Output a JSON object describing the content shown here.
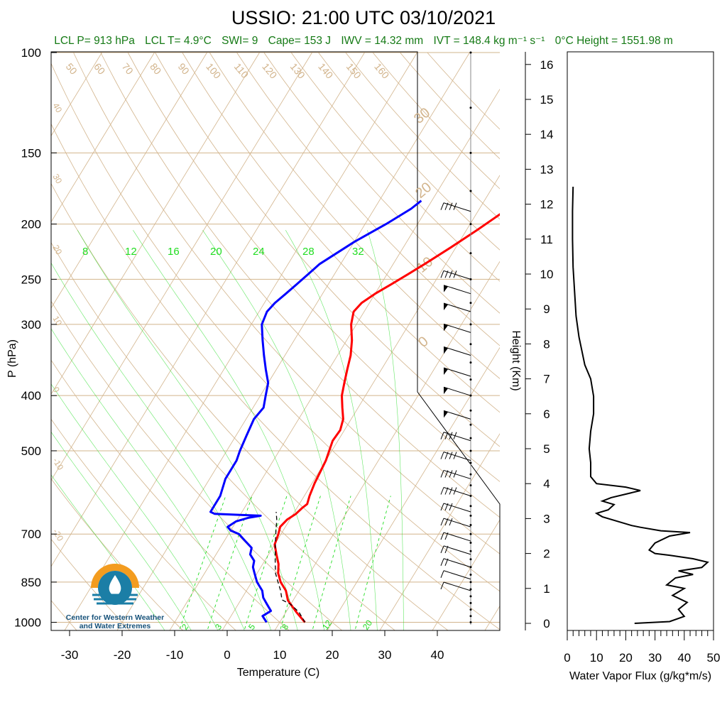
{
  "title": "USSIO: 21:00 UTC 03/10/2021",
  "subtitle": {
    "lcl_p": "LCL P= 913 hPa",
    "lcl_t": "LCL T= 4.9°C",
    "swi": "SWI= 9",
    "cape": "Cape= 153 J",
    "iwv": "IWV = 14.32 mm",
    "ivt": "IVT = 148.4 kg m⁻¹ s⁻¹",
    "zero_height": "0°C Height = 1551.98 m"
  },
  "logo": {
    "name_line1": "Center for Western Weather",
    "name_line2": "and Water Extremes",
    "icon": "water-drop-sun-icon"
  },
  "colors": {
    "temperature": "#ff0000",
    "dewpoint": "#0000ff",
    "parcel": "#000000",
    "isotherm": "#d2b48c",
    "mixing_ratio": "#22dd22",
    "subtitle": "#157a15"
  },
  "chart_data": [
    {
      "type": "line",
      "title": "",
      "xlabel": "Temperature (C)",
      "ylabel": "P (hPa)",
      "x_ticks": [
        -30,
        -20,
        -10,
        0,
        10,
        20,
        30,
        40
      ],
      "y_ticks": [
        100,
        150,
        200,
        250,
        300,
        400,
        500,
        700,
        850,
        1000
      ],
      "y_scale": "log",
      "xlim": [
        -34,
        50
      ],
      "ylim": [
        1050,
        100
      ],
      "isotherm_labels": [
        50,
        60,
        70,
        80,
        90,
        100,
        110,
        120,
        130,
        140,
        150,
        160
      ],
      "dry_adiabat_labels": [
        40,
        30,
        20,
        10,
        0,
        -10,
        -20
      ],
      "moist_adiabat_labels": [
        30,
        20,
        10,
        0
      ],
      "mixing_ratio_top_labels": [
        8,
        12,
        16,
        20,
        24,
        28,
        32
      ],
      "mixing_ratio_bottom_labels": [
        2,
        3,
        5,
        8,
        12,
        20
      ],
      "series": [
        {
          "kind": "temperature",
          "points": [
            [
              14.8,
              1000
            ],
            [
              12,
              960
            ],
            [
              9,
              915
            ],
            [
              7.5,
              880
            ],
            [
              5.5,
              850
            ],
            [
              4,
              820
            ],
            [
              3,
              790
            ],
            [
              1.5,
              760
            ],
            [
              0,
              730
            ],
            [
              -0.5,
              700
            ],
            [
              -1,
              680
            ],
            [
              -0.5,
              660
            ],
            [
              0.5,
              645
            ],
            [
              1,
              630
            ],
            [
              1.5,
              620
            ],
            [
              1,
              600
            ],
            [
              0.5,
              570
            ],
            [
              0.2,
              540
            ],
            [
              0,
              520
            ],
            [
              -0.5,
              500
            ],
            [
              -1,
              480
            ],
            [
              -0.8,
              460
            ],
            [
              -1.5,
              440
            ],
            [
              -3,
              420
            ],
            [
              -4.5,
              400
            ],
            [
              -5.5,
              380
            ],
            [
              -6.5,
              360
            ],
            [
              -7.5,
              340
            ],
            [
              -9,
              320
            ],
            [
              -11,
              300
            ],
            [
              -12,
              285
            ],
            [
              -11.5,
              275
            ],
            [
              -10,
              265
            ],
            [
              -8,
              255
            ],
            [
              -6,
              245
            ],
            [
              -4,
              235
            ],
            [
              -1,
              220
            ],
            [
              2,
              205
            ],
            [
              5,
              190
            ],
            [
              6,
              182
            ],
            [
              7,
              178
            ]
          ]
        },
        {
          "kind": "dewpoint",
          "points": [
            [
              7.5,
              1000
            ],
            [
              6,
              975
            ],
            [
              7,
              955
            ],
            [
              5.5,
              930
            ],
            [
              4,
              905
            ],
            [
              3,
              880
            ],
            [
              1,
              850
            ],
            [
              -0.5,
              820
            ],
            [
              -1.5,
              800
            ],
            [
              -2,
              780
            ],
            [
              -3.5,
              760
            ],
            [
              -4,
              740
            ],
            [
              -6,
              720
            ],
            [
              -8,
              700
            ],
            [
              -10,
              690
            ],
            [
              -11,
              680
            ],
            [
              -10,
              665
            ],
            [
              -8,
              655
            ],
            [
              -6,
              650
            ],
            [
              -10,
              648
            ],
            [
              -15,
              645
            ],
            [
              -16,
              640
            ],
            [
              -16,
              600
            ],
            [
              -17,
              560
            ],
            [
              -17,
              520
            ],
            [
              -17.5,
              500
            ],
            [
              -18,
              470
            ],
            [
              -18.5,
              440
            ],
            [
              -18,
              420
            ],
            [
              -19,
              400
            ],
            [
              -20,
              380
            ],
            [
              -22,
              360
            ],
            [
              -24,
              340
            ],
            [
              -26,
              320
            ],
            [
              -28,
              300
            ],
            [
              -28.5,
              285
            ],
            [
              -28,
              275
            ],
            [
              -27,
              265
            ],
            [
              -26,
              255
            ],
            [
              -25,
              245
            ],
            [
              -24,
              235
            ],
            [
              -20,
              215
            ],
            [
              -16,
              200
            ],
            [
              -13,
              188
            ],
            [
              -12,
              182
            ]
          ]
        },
        {
          "kind": "parcel",
          "points": [
            [
              14.8,
              1000
            ],
            [
              12.5,
              960
            ],
            [
              10,
              930
            ],
            [
              7.8,
              913
            ],
            [
              6.5,
              880
            ],
            [
              5,
              850
            ],
            [
              3.5,
              820
            ],
            [
              2,
              780
            ],
            [
              0.5,
              740
            ],
            [
              -1,
              700
            ],
            [
              -2.5,
              660
            ],
            [
              -3.5,
              640
            ]
          ]
        },
        {
          "kind": "wind_barbs",
          "points": [
            [
              15,
              880
            ],
            [
              15,
              840
            ],
            [
              20,
              800
            ],
            [
              20,
              760
            ],
            [
              25,
              720
            ],
            [
              30,
              680
            ],
            [
              35,
              640
            ],
            [
              40,
              600
            ],
            [
              40,
              560
            ],
            [
              45,
              520
            ],
            [
              45,
              480
            ],
            [
              50,
              440
            ],
            [
              50,
              400
            ],
            [
              55,
              370
            ],
            [
              55,
              340
            ],
            [
              55,
              310
            ],
            [
              55,
              285
            ],
            [
              50,
              265
            ],
            [
              45,
              250
            ],
            [
              45,
              190
            ]
          ]
        }
      ]
    },
    {
      "type": "line",
      "title": "",
      "xlabel": "Water Vapor Flux (g/kg*m/s)",
      "ylabel": "Height (Km)",
      "x_ticks": [
        0,
        10,
        20,
        30,
        40,
        50
      ],
      "y_ticks": [
        0,
        1,
        2,
        3,
        4,
        5,
        6,
        7,
        8,
        9,
        10,
        11,
        12,
        13,
        14,
        15,
        16
      ],
      "xlim": [
        0,
        50
      ],
      "ylim": [
        -0.2,
        16.3
      ],
      "series": [
        {
          "kind": "water-vapor-flux",
          "points": [
            [
              23,
              0
            ],
            [
              35,
              0.05
            ],
            [
              40,
              0.2
            ],
            [
              38,
              0.4
            ],
            [
              41,
              0.6
            ],
            [
              36,
              0.8
            ],
            [
              40,
              1.0
            ],
            [
              34,
              1.1
            ],
            [
              37,
              1.3
            ],
            [
              43,
              1.4
            ],
            [
              38,
              1.5
            ],
            [
              46,
              1.6
            ],
            [
              48,
              1.75
            ],
            [
              43,
              1.85
            ],
            [
              35,
              1.95
            ],
            [
              30,
              2.0
            ],
            [
              28,
              2.1
            ],
            [
              30,
              2.3
            ],
            [
              35,
              2.5
            ],
            [
              42,
              2.6
            ],
            [
              32,
              2.65
            ],
            [
              25,
              2.75
            ],
            [
              22,
              2.8
            ],
            [
              18,
              2.9
            ],
            [
              12,
              3.05
            ],
            [
              10,
              3.15
            ],
            [
              14,
              3.25
            ],
            [
              16,
              3.4
            ],
            [
              12,
              3.5
            ],
            [
              15,
              3.6
            ],
            [
              20,
              3.7
            ],
            [
              25,
              3.8
            ],
            [
              20,
              3.9
            ],
            [
              10,
              4.0
            ],
            [
              8,
              4.2
            ],
            [
              8,
              4.6
            ],
            [
              7.5,
              5.0
            ],
            [
              8,
              5.5
            ],
            [
              9,
              6.0
            ],
            [
              9,
              6.5
            ],
            [
              8,
              7.0
            ],
            [
              6,
              7.4
            ],
            [
              5,
              7.8
            ],
            [
              4,
              8.2
            ],
            [
              3,
              8.8
            ],
            [
              2.5,
              9.5
            ],
            [
              2,
              10.2
            ],
            [
              1.8,
              11
            ],
            [
              1.8,
              11.8
            ],
            [
              2,
              12.5
            ]
          ]
        }
      ]
    }
  ]
}
